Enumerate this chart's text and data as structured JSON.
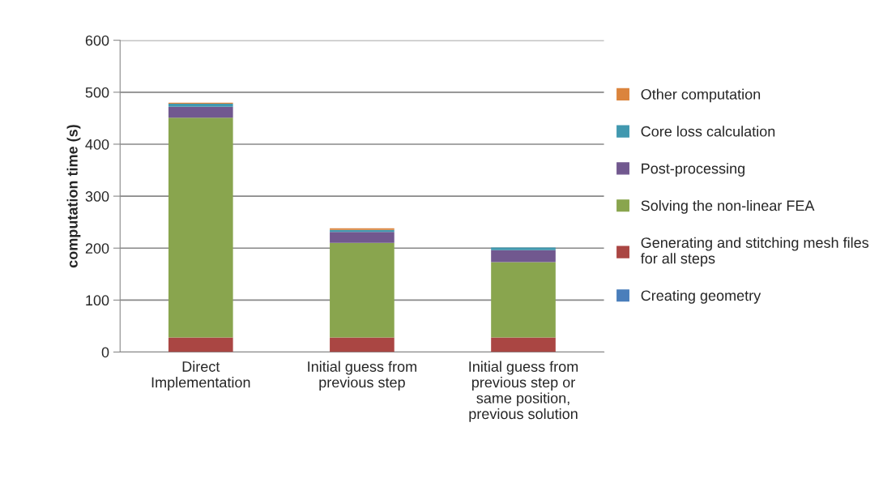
{
  "chart_data": {
    "type": "bar",
    "stacked": true,
    "ylabel": "computation time (s)",
    "categories": [
      "Direct Implementation",
      "Initial guess from previous step",
      "Initial guess from previous step or same position, previous solution"
    ],
    "series": [
      {
        "name": "Creating geometry",
        "color": "#4a7ebb",
        "values": [
          null,
          null,
          null
        ]
      },
      {
        "name": "Generating and stitching mesh files for all steps",
        "color": "#aa4643",
        "values": [
          28,
          28,
          28
        ]
      },
      {
        "name": "Solving the non-linear FEA",
        "color": "#89a54e",
        "values": [
          423,
          182,
          145
        ]
      },
      {
        "name": "Post-processing",
        "color": "#71588f",
        "values": [
          21,
          21,
          23
        ]
      },
      {
        "name": "Core loss calculation",
        "color": "#4198af",
        "values": [
          6,
          4,
          5
        ]
      },
      {
        "name": "Other computation",
        "color": "#db843d",
        "values": [
          2,
          3,
          null
        ]
      }
    ],
    "ylim": [
      0,
      600
    ],
    "yticks": [
      0,
      100,
      200,
      300,
      400,
      500,
      600
    ],
    "grid": "y",
    "legend": "right"
  }
}
